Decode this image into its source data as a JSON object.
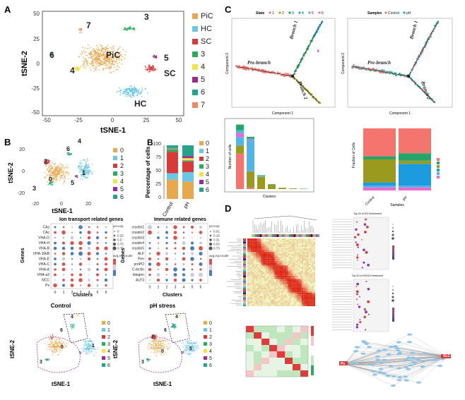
{
  "panels": {
    "A": {
      "letter": "A",
      "xlabel": "tSNE-1",
      "ylabel": "tSNE-2",
      "xticks": [
        "-50",
        "-25",
        "0",
        "25",
        "50"
      ],
      "yticks": [
        "50",
        "25",
        "0",
        "-25",
        "-50"
      ],
      "cluster_labels": [
        "7",
        "3",
        "PiC",
        "6",
        "4",
        "5",
        "SC",
        "HC"
      ],
      "legend": [
        {
          "label": "PiC",
          "color": "#E8A84C"
        },
        {
          "label": "HC",
          "color": "#6CC6E8"
        },
        {
          "label": "SC",
          "color": "#D83A3A"
        },
        {
          "label": "3",
          "color": "#2CAA5E"
        },
        {
          "label": "4",
          "color": "#F2E34A"
        },
        {
          "label": "5",
          "color": "#9A2A8E"
        },
        {
          "label": "6",
          "color": "#24A38A"
        },
        {
          "label": "7",
          "color": "#F08A5A"
        }
      ]
    },
    "B": {
      "letter": "B",
      "xlabel": "tSNE-1",
      "ylabel": "tSNE-2",
      "xticks": [
        "-20",
        "0",
        "20"
      ],
      "yticks": [
        "20",
        "0",
        "-20"
      ],
      "cluster_labels": [
        "4",
        "6",
        "2",
        "0",
        "1",
        "3",
        "5"
      ],
      "legend": [
        {
          "label": "0",
          "color": "#E8A84C"
        },
        {
          "label": "1",
          "color": "#6CC6E8"
        },
        {
          "label": "2",
          "color": "#D83A3A"
        },
        {
          "label": "3",
          "color": "#2CAA5E"
        },
        {
          "label": "4",
          "color": "#F2E34A"
        },
        {
          "label": "5",
          "color": "#9A2A8E"
        },
        {
          "label": "6",
          "color": "#24A38A"
        }
      ],
      "bar_letter": "B",
      "bar_ylabel": "Percentage of cells",
      "bar_yticks": [
        "100",
        "75",
        "50",
        "25",
        "0"
      ],
      "bar_categories": [
        "Control",
        "pH"
      ],
      "dot_titles": [
        "Ion transport related genes",
        "Immune related genes"
      ],
      "dot_ylabel": "Genes",
      "dot_xlabel": "Clusters",
      "dot_genes_left": [
        "CAs",
        "CAc",
        "VHA-G",
        "VHA-H",
        "VHA-B",
        "VHA-16kB",
        "VHA-E",
        "VHA-C",
        "VHA-A",
        "VHA-a2",
        "NCC",
        "Ps"
      ],
      "dot_genes_right": [
        "crustin1",
        "crustin2",
        "crustin3",
        "crustin4",
        "crustin5",
        "ALF",
        "Pen",
        "proPO",
        "C-lectin",
        "integrin",
        "ALF3"
      ],
      "dot_xticks": [
        "0",
        "1",
        "2",
        "3",
        "4",
        "5",
        "6"
      ],
      "dot_legend_left": {
        "pct_title": "pct.exp",
        "pct": [
          "0",
          "0.25",
          "0.5",
          "0.75",
          "0.75"
        ],
        "avg_title": "avg.exp.scale"
      },
      "dot_legend_right": {
        "pct_title": "pct.exp",
        "pct": [
          "0.01",
          "0.19",
          "0.31",
          "0.53",
          "0.73"
        ],
        "avg_title": "avg.exp.scale"
      },
      "umap_titles": [
        "Control",
        "pH stress"
      ],
      "umap_xlabel": "tSNE-1",
      "umap_ylabel": "tSNE-2",
      "umap_cluster_labels": [
        "4",
        "6",
        "2",
        "0",
        "1",
        "5",
        "3"
      ]
    },
    "C": {
      "letter": "C",
      "traj_left_legend_title": "State",
      "traj_left_legend": [
        "1",
        "2",
        "3",
        "4",
        "5",
        "6"
      ],
      "traj_right_legend_title": "Samples",
      "traj_right_legend": [
        "Control",
        "pH"
      ],
      "branch_labels": [
        "Pre-branch",
        "Branch 1",
        "Branch 2"
      ],
      "traj_xlabel": "Component 1",
      "traj_ylabel": "Component 2",
      "bar_left_xlabel": "Clusters",
      "bar_left_ylabel": "Number of cells",
      "bar_right_xlabel": "Samples",
      "bar_right_ylabel": "Fraction of Cells",
      "bar_right_categories": [
        "Control",
        "pH"
      ]
    },
    "D": {
      "letter": "D",
      "go_title": "Top 20 of GO Enrichment",
      "kegg_title": "Top 20 of KEGG Enrichment",
      "net_labels": [
        "Ps",
        "SLC"
      ]
    }
  },
  "chart_data": [
    {
      "type": "scatter",
      "title": "",
      "xlabel": "tSNE-1",
      "ylabel": "tSNE-2",
      "xlim": [
        -60,
        60
      ],
      "ylim": [
        -60,
        60
      ],
      "series": [
        {
          "name": "PiC",
          "center": [
            -8,
            6
          ]
        },
        {
          "name": "HC",
          "center": [
            16,
            -32
          ]
        },
        {
          "name": "SC",
          "center": [
            32,
            -6
          ]
        },
        {
          "name": "3",
          "center": [
            14,
            40
          ]
        },
        {
          "name": "4",
          "center": [
            -30,
            -6
          ]
        },
        {
          "name": "5",
          "center": [
            36,
            8
          ]
        },
        {
          "name": "6",
          "center": [
            -52,
            10
          ]
        },
        {
          "name": "7",
          "center": [
            -28,
            38
          ]
        }
      ]
    },
    {
      "type": "bar",
      "title": "",
      "ylabel": "Percentage of cells",
      "categories": [
        "Control",
        "pH"
      ],
      "ylim": [
        0,
        100
      ],
      "series": [
        {
          "name": "0",
          "values": [
            36,
            32
          ]
        },
        {
          "name": "1",
          "values": [
            12,
            18
          ]
        },
        {
          "name": "2",
          "values": [
            40,
            20
          ]
        },
        {
          "name": "3",
          "values": [
            5,
            2
          ]
        },
        {
          "name": "4",
          "values": [
            1,
            4
          ]
        },
        {
          "name": "5",
          "values": [
            1,
            4
          ]
        },
        {
          "name": "6",
          "values": [
            5,
            20
          ]
        }
      ]
    },
    {
      "type": "bar",
      "xlabel": "Clusters",
      "ylabel": "Number of cells",
      "categories": [
        "0",
        "1",
        "2",
        "3",
        "4",
        "5",
        "6"
      ],
      "series": [
        {
          "name": "1",
          "values": [
            120,
            20,
            0,
            0,
            0,
            0,
            0
          ]
        },
        {
          "name": "2",
          "values": [
            260,
            950,
            20,
            0,
            0,
            0,
            0
          ]
        },
        {
          "name": "3",
          "values": [
            1100,
            50,
            0,
            0,
            0,
            0,
            0
          ]
        },
        {
          "name": "4",
          "values": [
            250,
            500,
            380,
            140,
            40,
            20,
            0
          ]
        },
        {
          "name": "5",
          "values": [
            180,
            60,
            20,
            10,
            0,
            0,
            10
          ]
        },
        {
          "name": "6",
          "values": [
            90,
            40,
            10,
            0,
            0,
            0,
            0
          ]
        }
      ]
    },
    {
      "type": "bar",
      "xlabel": "Samples",
      "ylabel": "Fraction of Cells",
      "categories": [
        "Control",
        "pH"
      ],
      "ylim": [
        0,
        1
      ],
      "series": [
        {
          "name": "1",
          "values": [
            0.05,
            0.05
          ]
        },
        {
          "name": "2",
          "values": [
            0.03,
            0.03
          ]
        },
        {
          "name": "3",
          "values": [
            0.05,
            0.35
          ]
        },
        {
          "name": "4",
          "values": [
            0.37,
            0.05
          ]
        },
        {
          "name": "5",
          "values": [
            0.05,
            0.12
          ]
        },
        {
          "name": "6",
          "values": [
            0.45,
            0.4
          ]
        }
      ]
    }
  ]
}
